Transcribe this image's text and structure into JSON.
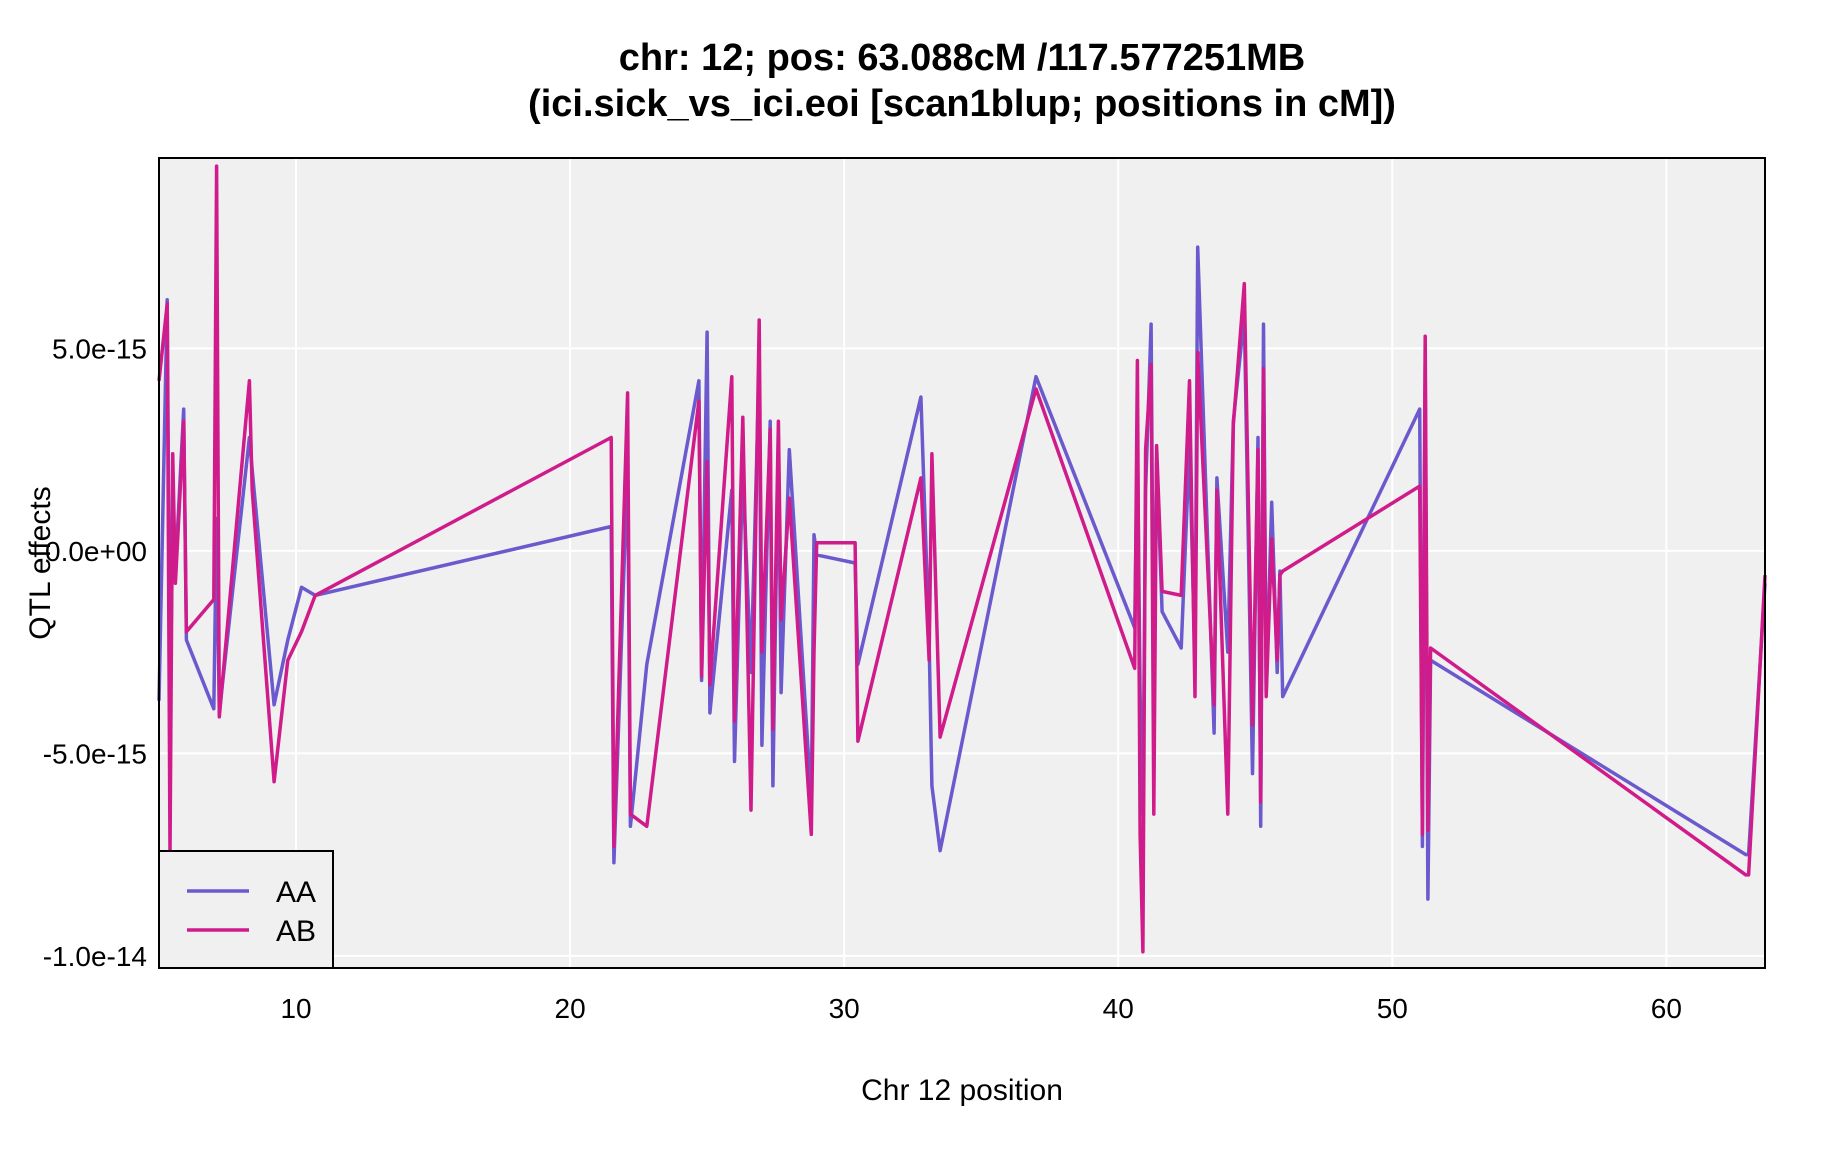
{
  "chart_data": {
    "type": "line",
    "title": "chr: 12; pos: 63.088cM /117.577251MB",
    "subtitle": "(ici.sick_vs_ici.eoi [scan1blup; positions in cM])",
    "xlabel": "Chr 12 position",
    "ylabel": "QTL effects",
    "xlim": [
      5.0,
      63.6
    ],
    "ylim": [
      -1.03e-14,
      9.7e-15
    ],
    "xticks": [
      10,
      20,
      30,
      40,
      50,
      60
    ],
    "xtick_labels": [
      "10",
      "20",
      "30",
      "40",
      "50",
      "60"
    ],
    "yticks": [
      5e-15,
      0,
      -5e-15,
      -1e-14
    ],
    "ytick_labels": [
      "5.0e-15",
      "0.0e+00",
      "-5.0e-15",
      "-1.0e-14"
    ],
    "grid": true,
    "legend_position": "bottom-left",
    "background": "#f0f0f0",
    "series": [
      {
        "name": "AA",
        "color": "#6a5acd",
        "x": [
          5.0,
          5.3,
          5.4,
          5.5,
          5.6,
          5.9,
          6.0,
          7.0,
          7.1,
          7.2,
          8.3,
          8.4,
          9.2,
          9.7,
          10.2,
          10.7,
          21.5,
          21.6,
          22.1,
          22.2,
          22.8,
          24.7,
          24.8,
          25.0,
          25.1,
          25.9,
          26.0,
          26.3,
          26.6,
          26.9,
          27.0,
          27.3,
          27.4,
          27.6,
          27.7,
          28.0,
          28.8,
          28.9,
          29.0,
          30.4,
          30.5,
          32.8,
          33.1,
          33.2,
          33.5,
          37.0,
          40.6,
          40.7,
          40.8,
          40.9,
          41.0,
          41.2,
          41.3,
          41.4,
          41.6,
          42.3,
          42.6,
          42.8,
          42.9,
          43.5,
          43.6,
          44.0,
          44.2,
          44.6,
          44.9,
          45.1,
          45.2,
          45.3,
          45.4,
          45.6,
          45.8,
          45.9,
          46.0,
          51.0,
          51.1,
          51.2,
          51.3,
          51.4,
          62.9,
          63.0,
          63.6
        ],
        "y": [
          -3.7e-15,
          6.2e-15,
          -3.8e-15,
          5e-16,
          -5e-16,
          3.5e-15,
          -2.2e-15,
          -3.9e-15,
          8e-16,
          -4e-15,
          2.8e-15,
          2e-15,
          -3.8e-15,
          -2.2e-15,
          -9e-16,
          -1.1e-15,
          6e-16,
          -7.7e-15,
          2.2e-15,
          -6.8e-15,
          -2.8e-15,
          4.2e-15,
          -3.2e-15,
          5.4e-15,
          -4e-15,
          1.5e-15,
          -5.2e-15,
          2e-15,
          -3e-15,
          4.6e-15,
          -4.8e-15,
          3.2e-15,
          -5.8e-15,
          2.8e-15,
          -3.5e-15,
          2.5e-15,
          -6.2e-15,
          4e-16,
          -1e-16,
          -3e-16,
          -2.8e-15,
          3.8e-15,
          -2.2e-15,
          -5.8e-15,
          -7.4e-15,
          4.3e-15,
          -1.9e-15,
          2.8e-15,
          -3.5e-15,
          -6.5e-15,
          1.5e-15,
          5.6e-15,
          -3.9e-15,
          2.3e-15,
          -1.5e-15,
          -2.4e-15,
          2.6e-15,
          -2.8e-15,
          7.5e-15,
          -4.5e-15,
          1.8e-15,
          -2.5e-15,
          3.2e-15,
          5.8e-15,
          -5.5e-15,
          2.8e-15,
          -6.8e-15,
          5.6e-15,
          -3.5e-15,
          1.2e-15,
          -3e-15,
          -5e-16,
          -3.6e-15,
          3.5e-15,
          -7.3e-15,
          4.6e-15,
          -8.6e-15,
          -2.7e-15,
          -7.5e-15,
          -7.5e-15,
          -8e-16
        ]
      },
      {
        "name": "AB",
        "color": "#d01c8b",
        "x": [
          5.0,
          5.3,
          5.4,
          5.5,
          5.6,
          5.9,
          6.0,
          7.0,
          7.1,
          7.2,
          8.3,
          8.4,
          9.2,
          9.7,
          10.2,
          10.7,
          21.5,
          21.6,
          22.1,
          22.2,
          22.8,
          24.7,
          24.8,
          25.0,
          25.1,
          25.9,
          26.0,
          26.3,
          26.6,
          26.9,
          27.0,
          27.3,
          27.4,
          27.6,
          27.7,
          28.0,
          28.8,
          28.9,
          29.0,
          30.4,
          30.5,
          32.8,
          33.1,
          33.2,
          33.5,
          37.0,
          40.6,
          40.7,
          40.8,
          40.9,
          41.0,
          41.2,
          41.3,
          41.4,
          41.6,
          42.3,
          42.6,
          42.8,
          42.9,
          43.5,
          43.6,
          44.0,
          44.2,
          44.6,
          44.9,
          45.1,
          45.2,
          45.3,
          45.4,
          45.6,
          45.8,
          45.9,
          46.0,
          51.0,
          51.1,
          51.2,
          51.3,
          51.4,
          62.9,
          63.0,
          63.6
        ],
        "y": [
          4.2e-15,
          6.1e-15,
          -7.5e-15,
          2.4e-15,
          -8e-16,
          3.2e-15,
          -2e-15,
          -1.2e-15,
          9.5e-15,
          -4.1e-15,
          4.2e-15,
          1.5e-15,
          -5.7e-15,
          -2.7e-15,
          -2e-15,
          -1.1e-15,
          2.8e-15,
          -7.3e-15,
          3.9e-15,
          -6.5e-15,
          -6.8e-15,
          3.7e-15,
          -3.1e-15,
          2.2e-15,
          -3.3e-15,
          4.3e-15,
          -4.2e-15,
          3.3e-15,
          -6.4e-15,
          5.7e-15,
          -2.5e-15,
          3e-15,
          -4.4e-15,
          3.2e-15,
          -1.7e-15,
          1.3e-15,
          -7e-15,
          -2.5e-15,
          2e-16,
          2e-16,
          -4.7e-15,
          1.8e-15,
          -2.7e-15,
          2.4e-15,
          -4.6e-15,
          4e-15,
          -2.9e-15,
          4.7e-15,
          -7e-15,
          -9.9e-15,
          2.5e-15,
          4.6e-15,
          -6.5e-15,
          2.6e-15,
          -1e-15,
          -1.1e-15,
          4.2e-15,
          -3.6e-15,
          4.9e-15,
          -3.8e-15,
          1.5e-15,
          -6.5e-15,
          3.1e-15,
          6.6e-15,
          -4.3e-15,
          2.5e-15,
          -6.2e-15,
          4.5e-15,
          -3.6e-15,
          3e-16,
          -2.7e-15,
          -6e-16,
          -5e-16,
          1.6e-15,
          -7e-15,
          5.3e-15,
          -6.9e-15,
          -2.4e-15,
          -8e-15,
          -8e-15,
          -6e-16
        ]
      }
    ]
  }
}
